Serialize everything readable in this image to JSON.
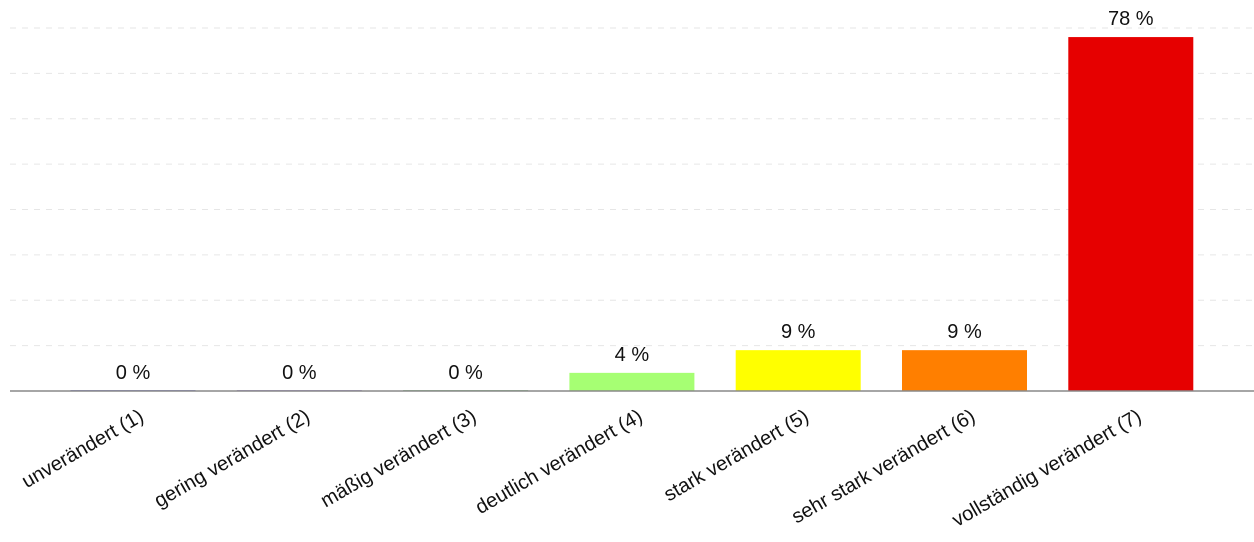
{
  "chart_data": {
    "type": "bar",
    "categories": [
      "unverändert (1)",
      "gering verändert (2)",
      "mäßig verändert (3)",
      "deutlich verändert (4)",
      "stark verändert (5)",
      "sehr stark verändert (6)",
      "vollständig verändert (7)"
    ],
    "values": [
      0,
      0,
      0,
      4,
      9,
      9,
      78
    ],
    "value_labels": [
      "0 %",
      "0 %",
      "0 %",
      "4 %",
      "9 %",
      "9 %",
      "78 %"
    ],
    "colors": [
      "#8f8fd6",
      "#b39ddb",
      "#9ccc9c",
      "#a6ff73",
      "#ffff00",
      "#ff7f00",
      "#e60000"
    ],
    "ylim": [
      0,
      80
    ],
    "grid": true,
    "legend": "none",
    "title": "",
    "xlabel": "",
    "ylabel": ""
  }
}
